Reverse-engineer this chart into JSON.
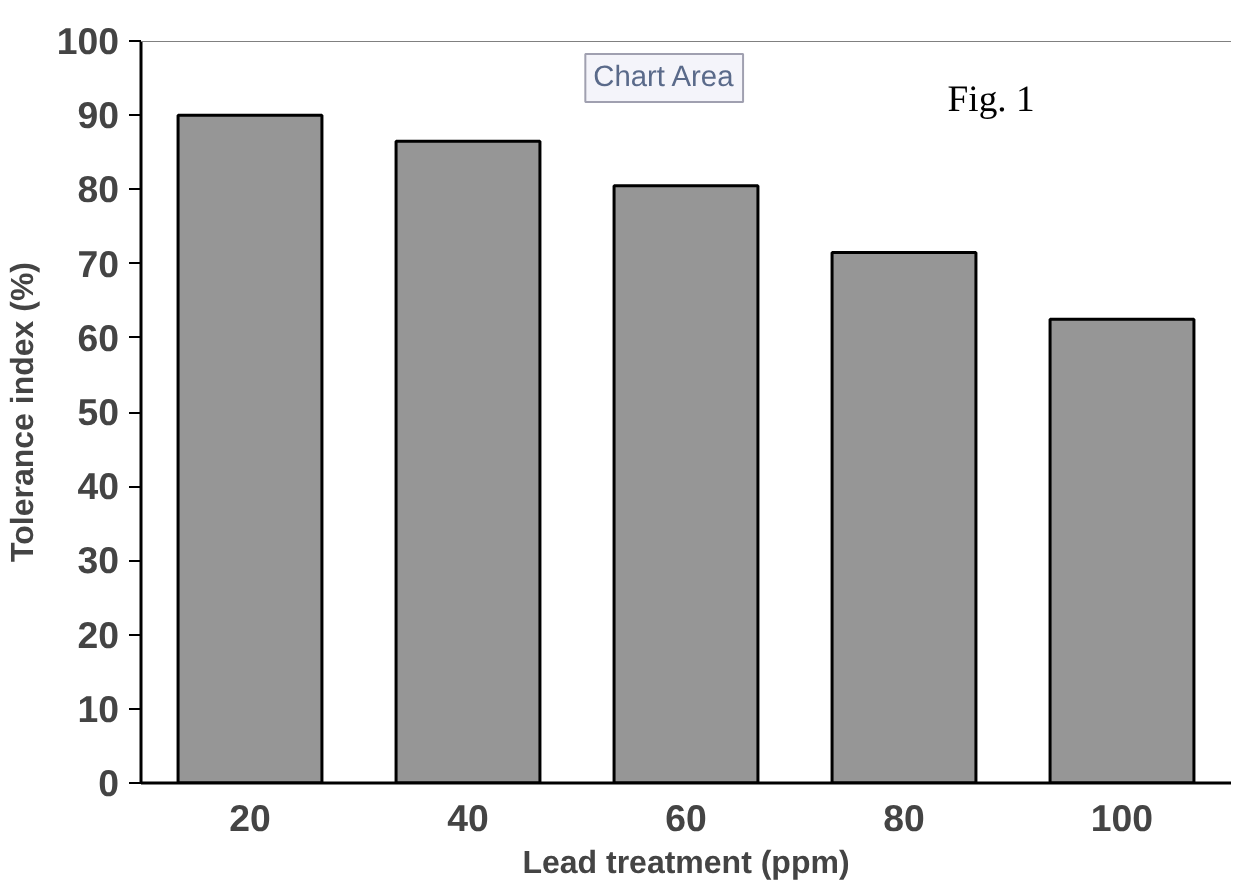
{
  "chart_data": {
    "type": "bar",
    "xlabel": "Lead treatment (ppm)",
    "ylabel": "Tolerance index (%)",
    "categories": [
      "20",
      "40",
      "60",
      "80",
      "100"
    ],
    "values": [
      90,
      86.5,
      80.5,
      71.5,
      62.5
    ],
    "color": "#969696",
    "ylim": [
      0,
      100
    ],
    "yticks": [
      0,
      10,
      20,
      30,
      40,
      50,
      60,
      70,
      80,
      90,
      100
    ],
    "grid": false,
    "annotations": [
      "Chart Area",
      "Fig. 1"
    ]
  }
}
